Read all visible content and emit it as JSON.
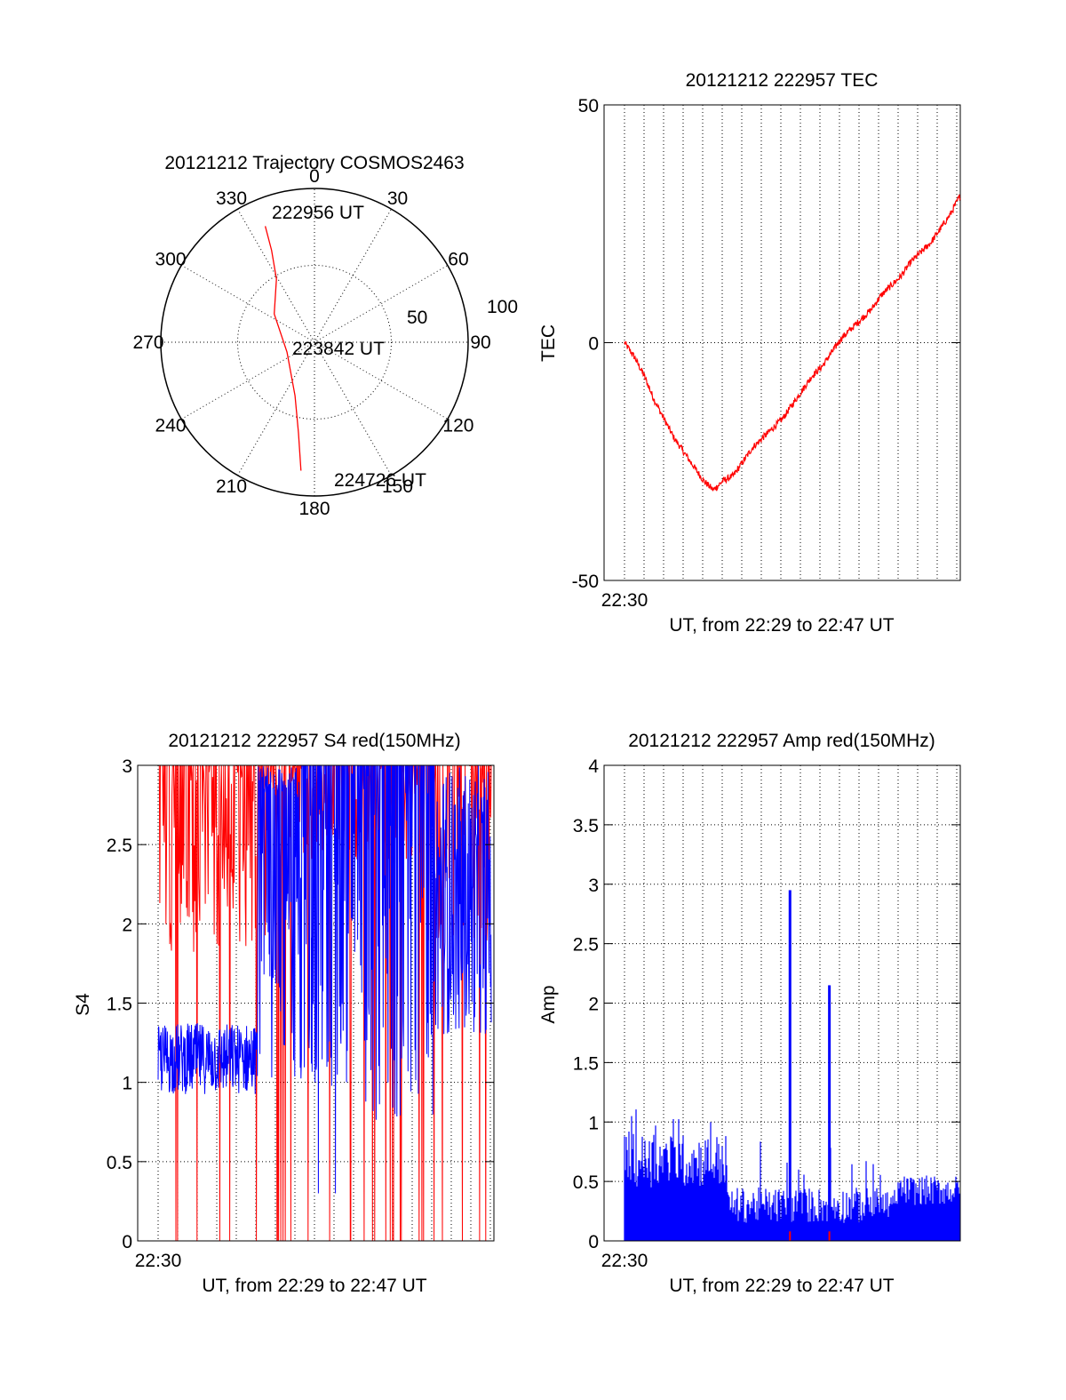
{
  "chart_data": [
    {
      "id": "trajectory",
      "type": "polar",
      "title": "20121212 Trajectory COSMOS2463",
      "angle_labels": [
        "0",
        "30",
        "60",
        "90",
        "120",
        "150",
        "180",
        "210",
        "240",
        "270",
        "300",
        "330"
      ],
      "radial_labels": [
        "50",
        "100"
      ],
      "rlim": [
        0,
        100
      ],
      "track": {
        "color": "#ff0000",
        "points": [
          {
            "az": 337,
            "r": 82
          },
          {
            "az": 335,
            "r": 66
          },
          {
            "az": 329,
            "r": 48
          },
          {
            "az": 305,
            "r": 32
          },
          {
            "az": 250,
            "r": 19
          },
          {
            "az": 200,
            "r": 37
          },
          {
            "az": 190,
            "r": 60
          },
          {
            "az": 186,
            "r": 84
          }
        ],
        "start_label": "222956 UT",
        "mid_label": "223842 UT",
        "end_label": "224726 UT"
      }
    },
    {
      "id": "tec",
      "type": "line",
      "title": "20121212 222957 TEC",
      "xlabel": "UT, from 22:29 to 22:47 UT",
      "ylabel": "TEC",
      "x_tick_label": "22:30",
      "ylim": [
        -50,
        50
      ],
      "y_ticks": [
        -50,
        0,
        50
      ],
      "grid": true,
      "series": [
        {
          "color": "#ff0000",
          "x": [
            0,
            0.5,
            1,
            1.5,
            2,
            2.5,
            3,
            3.5,
            4,
            4.5,
            5,
            5.5,
            6,
            6.5,
            7,
            7.5,
            8,
            8.5,
            9,
            9.5,
            10,
            10.5,
            11,
            11.5,
            12,
            12.5,
            13,
            13.5,
            14,
            14.5,
            15,
            15.5,
            16,
            16.5,
            17
          ],
          "values": [
            0,
            -3,
            -7,
            -12,
            -16,
            -20,
            -23,
            -26,
            -29,
            -31,
            -29,
            -28,
            -25,
            -22,
            -20,
            -18,
            -16,
            -13,
            -10,
            -7,
            -5,
            -2,
            1,
            3,
            5,
            7,
            10,
            12,
            14,
            17,
            19,
            21,
            24,
            27,
            31
          ]
        }
      ]
    },
    {
      "id": "s4",
      "type": "line",
      "title": "20121212 222957 S4 red(150MHz)",
      "xlabel": "UT, from 22:29 to 22:47 UT",
      "ylabel": "S4",
      "x_tick_label": "22:30",
      "ylim": [
        0,
        3
      ],
      "y_ticks": [
        "0",
        "0.5",
        "1",
        "1.5",
        "2",
        "2.5",
        "3"
      ],
      "grid": true,
      "series": [
        {
          "color": "#ff0000",
          "description_level_range": [
            0,
            3
          ]
        },
        {
          "color": "#0000ff",
          "description_level_range": [
            0.3,
            3
          ]
        }
      ]
    },
    {
      "id": "amp",
      "type": "line",
      "title": "20121212 222957 Amp red(150MHz)",
      "xlabel": "UT, from 22:29 to 22:47 UT",
      "ylabel": "Amp",
      "x_tick_label": "22:30",
      "ylim": [
        0,
        4
      ],
      "y_ticks": [
        "0",
        "0.5",
        "1",
        "1.5",
        "2",
        "2.5",
        "3",
        "3.5",
        "4"
      ],
      "grid": true,
      "peaks": [
        {
          "x": 8.4,
          "value": 2.95
        },
        {
          "x": 10.4,
          "value": 2.15
        }
      ],
      "series": [
        {
          "color": "#0000ff"
        },
        {
          "color": "#ff0000"
        }
      ]
    }
  ]
}
